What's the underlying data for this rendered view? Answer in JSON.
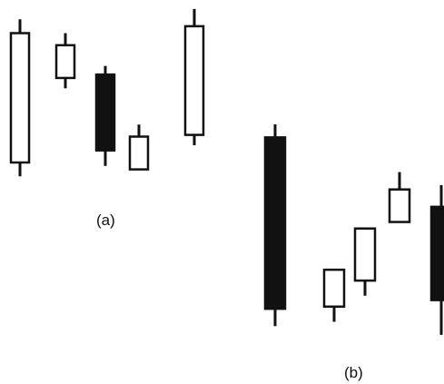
{
  "panels": [
    {
      "caption": "(a)",
      "chart_data": {
        "type": "candlestick",
        "title": "",
        "xlabel": "",
        "ylabel": "",
        "axes_visible": false,
        "grid": false,
        "ylim": [
          0,
          100
        ],
        "candles": [
          {
            "open": 10,
            "close": 85,
            "high": 93,
            "low": 2,
            "direction": "up"
          },
          {
            "open": 59,
            "close": 78,
            "high": 85,
            "low": 53,
            "direction": "up"
          },
          {
            "open": 61,
            "close": 17,
            "high": 66,
            "low": 8,
            "direction": "down"
          },
          {
            "open": 6,
            "close": 25,
            "high": 32,
            "low": 6,
            "direction": "up"
          },
          {
            "open": 26,
            "close": 89,
            "high": 99,
            "low": 20,
            "direction": "up"
          }
        ]
      }
    },
    {
      "caption": "(b)",
      "chart_data": {
        "type": "candlestick",
        "title": "",
        "xlabel": "",
        "ylabel": "",
        "axes_visible": false,
        "grid": false,
        "ylim": [
          0,
          100
        ],
        "candles": [
          {
            "open": 94,
            "close": 15,
            "high": 100,
            "low": 7,
            "direction": "down"
          },
          {
            "open": 16,
            "close": 33,
            "high": 33,
            "low": 9,
            "direction": "up"
          },
          {
            "open": 28,
            "close": 52,
            "high": 52,
            "low": 21,
            "direction": "up"
          },
          {
            "open": 55,
            "close": 70,
            "high": 78,
            "low": 55,
            "direction": "up"
          },
          {
            "open": 62,
            "close": 19,
            "high": 72,
            "low": 3,
            "direction": "down"
          }
        ]
      }
    }
  ],
  "colors": {
    "up_fill": "#ffffff",
    "down_fill": "#111111",
    "stroke": "#111111"
  }
}
